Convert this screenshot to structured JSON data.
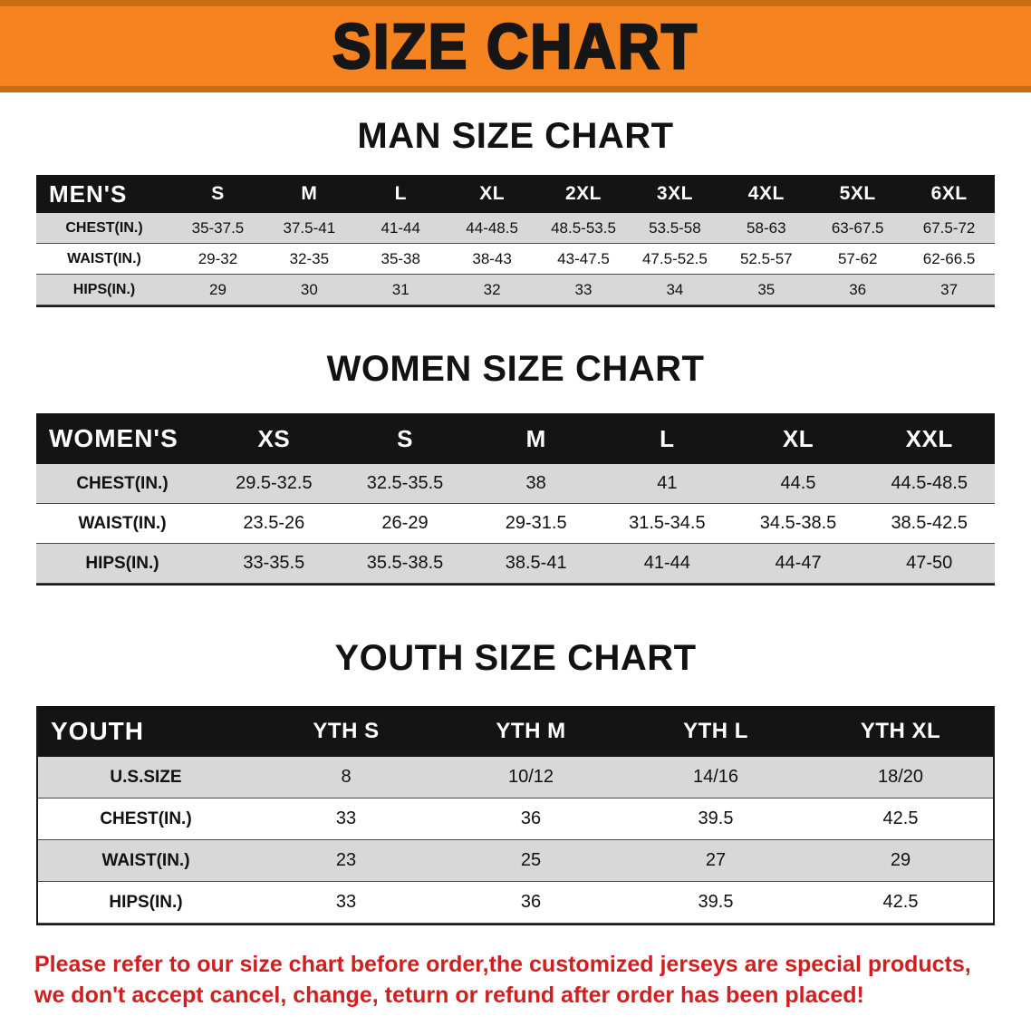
{
  "banner": {
    "title": "SIZE CHART"
  },
  "colors": {
    "banner_orange": "#f5831f",
    "banner_border": "#c96d14",
    "header_black": "#141414",
    "row_gray": "#d8d8d8",
    "disclaimer_red": "#d01f1f"
  },
  "sections": [
    {
      "kind": "men",
      "heading": "MAN SIZE CHART",
      "corner_label": "MEN'S",
      "sizes": [
        "S",
        "M",
        "L",
        "XL",
        "2XL",
        "3XL",
        "4XL",
        "5XL",
        "6XL"
      ],
      "rows": [
        {
          "label": "CHEST(IN.)",
          "values": [
            "35-37.5",
            "37.5-41",
            "41-44",
            "44-48.5",
            "48.5-53.5",
            "53.5-58",
            "58-63",
            "63-67.5",
            "67.5-72"
          ]
        },
        {
          "label": "WAIST(IN.)",
          "values": [
            "29-32",
            "32-35",
            "35-38",
            "38-43",
            "43-47.5",
            "47.5-52.5",
            "52.5-57",
            "57-62",
            "62-66.5"
          ]
        },
        {
          "label": "HIPS(IN.)",
          "values": [
            "29",
            "30",
            "31",
            "32",
            "33",
            "34",
            "35",
            "36",
            "37"
          ]
        }
      ]
    },
    {
      "kind": "women",
      "heading": "WOMEN SIZE CHART",
      "corner_label": "WOMEN'S",
      "sizes": [
        "XS",
        "S",
        "M",
        "L",
        "XL",
        "XXL"
      ],
      "rows": [
        {
          "label": "CHEST(IN.)",
          "values": [
            "29.5-32.5",
            "32.5-35.5",
            "38",
            "41",
            "44.5",
            "44.5-48.5"
          ]
        },
        {
          "label": "WAIST(IN.)",
          "values": [
            "23.5-26",
            "26-29",
            "29-31.5",
            "31.5-34.5",
            "34.5-38.5",
            "38.5-42.5"
          ]
        },
        {
          "label": "HIPS(IN.)",
          "values": [
            "33-35.5",
            "35.5-38.5",
            "38.5-41",
            "41-44",
            "44-47",
            "47-50"
          ]
        }
      ]
    },
    {
      "kind": "youth",
      "heading": "YOUTH SIZE CHART",
      "corner_label": "YOUTH",
      "sizes": [
        "YTH S",
        "YTH M",
        "YTH L",
        "YTH XL"
      ],
      "rows": [
        {
          "label": "U.S.SIZE",
          "values": [
            "8",
            "10/12",
            "14/16",
            "18/20"
          ]
        },
        {
          "label": "CHEST(IN.)",
          "values": [
            "33",
            "36",
            "39.5",
            "42.5"
          ]
        },
        {
          "label": "WAIST(IN.)",
          "values": [
            "23",
            "25",
            "27",
            "29"
          ]
        },
        {
          "label": "HIPS(IN.)",
          "values": [
            "33",
            "36",
            "39.5",
            "42.5"
          ]
        }
      ]
    }
  ],
  "disclaimer": {
    "line1": "Please refer to our size chart before order,the customized jerseys are special products,",
    "line2": "we don't accept cancel, change, teturn or refund after order has been placed!"
  }
}
